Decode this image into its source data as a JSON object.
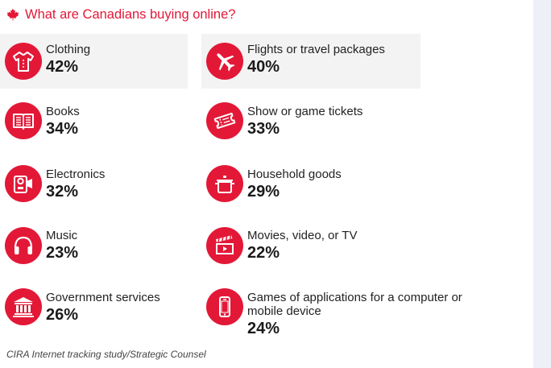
{
  "title": "What are Canadians buying online?",
  "footer": "CIRA Internet tracking study/Strategic Counsel",
  "colors": {
    "accent": "#e31837",
    "shaded": "#f3f3f3",
    "side_panel": "#eef0f7"
  },
  "chart_data": {
    "type": "table",
    "title": "What are Canadians buying online?",
    "items": [
      {
        "label": "Clothing",
        "value": "42%",
        "icon": "shirt-icon"
      },
      {
        "label": "Flights or travel packages",
        "value": "40%",
        "icon": "airplane-icon"
      },
      {
        "label": "Books",
        "value": "34%",
        "icon": "book-icon"
      },
      {
        "label": "Show or game tickets",
        "value": "33%",
        "icon": "ticket-icon"
      },
      {
        "label": "Electronics",
        "value": "32%",
        "icon": "camcorder-icon"
      },
      {
        "label": "Household goods",
        "value": "29%",
        "icon": "pot-icon"
      },
      {
        "label": "Music",
        "value": "23%",
        "icon": "headphones-icon"
      },
      {
        "label": "Movies, video, or TV",
        "value": "22%",
        "icon": "clapperboard-icon"
      },
      {
        "label": "Government services",
        "value": "26%",
        "icon": "government-building-icon"
      },
      {
        "label": "Games of applications for a computer or mobile device",
        "value": "24%",
        "icon": "smartphone-icon"
      }
    ]
  }
}
